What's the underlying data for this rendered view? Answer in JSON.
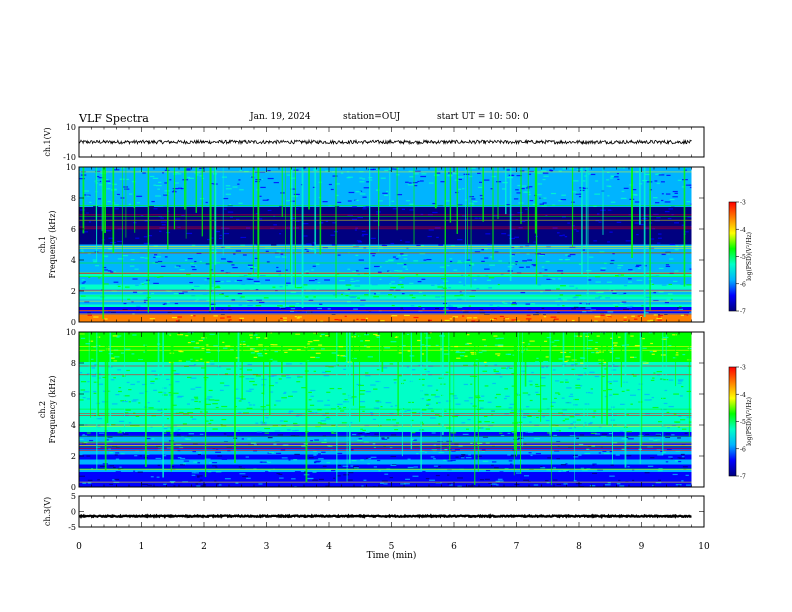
{
  "header": {
    "title": "VLF Spectra",
    "date": "Jan. 19, 2024",
    "station": "station=OUJ",
    "start": "start  UT  =   10: 50: 0"
  },
  "colors": {
    "waveform": "#000000",
    "colormap": [
      "#000080",
      "#0000ff",
      "#00b4ff",
      "#00ffc8",
      "#00ff00",
      "#ffff00",
      "#ff7f00",
      "#ff0000"
    ]
  },
  "chart_data": [
    {
      "type": "line",
      "name": "ch1-waveform",
      "ylabel": "ch.1(V)",
      "ylim": [
        -10,
        10
      ],
      "yticks": [
        "10",
        "-10"
      ],
      "xlim": [
        0,
        10
      ],
      "level": 0,
      "noise_amplitude": 1.2,
      "data_end_min": 9.8
    },
    {
      "type": "heatmap",
      "name": "ch1-spectrogram",
      "ylabel": "ch.1\nFrequency  (kHz)",
      "ylim": [
        0,
        10
      ],
      "yticks": [
        "0",
        "2",
        "4",
        "6",
        "8",
        "10"
      ],
      "xlim": [
        0,
        10
      ],
      "data_end_min": 9.8,
      "colorbar": {
        "label": "log(PSD)(V²/Hz)",
        "ticks": [
          "-3",
          "-4",
          "-5",
          "-6",
          "-7"
        ],
        "range": [
          -7,
          -3
        ]
      }
    },
    {
      "type": "heatmap",
      "name": "ch2-spectrogram",
      "ylabel": "ch.2\nFrequency  (kHz)",
      "ylim": [
        0,
        10
      ],
      "yticks": [
        "0",
        "2",
        "4",
        "6",
        "8",
        "10"
      ],
      "xlim": [
        0,
        10
      ],
      "data_end_min": 9.8,
      "colorbar": {
        "label": "log(PSD)(V²/Hz)",
        "ticks": [
          "-3",
          "-4",
          "-5",
          "-6",
          "-7"
        ],
        "range": [
          -7,
          -3
        ]
      }
    },
    {
      "type": "line",
      "name": "ch3-waveform",
      "ylabel": "ch.3(V)",
      "ylim": [
        -5,
        5
      ],
      "yticks": [
        "5",
        "0",
        "-5"
      ],
      "xlim": [
        0,
        10
      ],
      "level": -1.5,
      "noise_amplitude": 0.2,
      "data_end_min": 9.8
    }
  ],
  "xaxis": {
    "label": "Time  (min)",
    "ticks": [
      "0",
      "1",
      "2",
      "3",
      "4",
      "5",
      "6",
      "7",
      "8",
      "9",
      "10"
    ]
  }
}
